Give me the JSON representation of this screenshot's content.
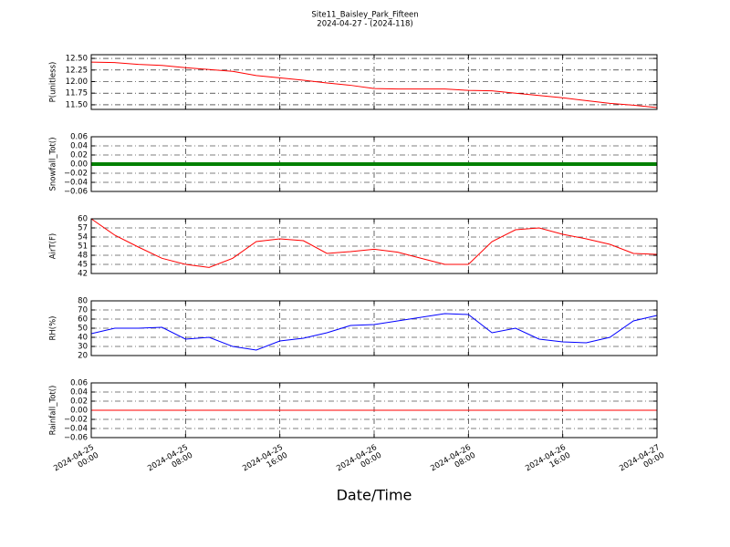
{
  "chart_data": [
    {
      "type": "line",
      "title": "Site11_Baisley_Park_Fifteen",
      "subtitle": "2024-04-27 - (2024-118)",
      "ylabel": "P(unitless)",
      "color": "#ff0000",
      "x": [
        "2024-04-25 00:00",
        "2024-04-25 02:00",
        "2024-04-25 04:00",
        "2024-04-25 06:00",
        "2024-04-25 08:00",
        "2024-04-25 10:00",
        "2024-04-25 12:00",
        "2024-04-25 14:00",
        "2024-04-25 16:00",
        "2024-04-25 18:00",
        "2024-04-25 20:00",
        "2024-04-25 22:00",
        "2024-04-26 00:00",
        "2024-04-26 02:00",
        "2024-04-26 04:00",
        "2024-04-26 06:00",
        "2024-04-26 08:00",
        "2024-04-26 10:00",
        "2024-04-26 12:00",
        "2024-04-26 14:00",
        "2024-04-26 16:00",
        "2024-04-26 18:00",
        "2024-04-26 20:00",
        "2024-04-26 22:00",
        "2024-04-27 00:00"
      ],
      "values": [
        12.42,
        12.41,
        12.37,
        12.35,
        12.3,
        12.26,
        12.22,
        12.13,
        12.08,
        12.03,
        11.97,
        11.92,
        11.85,
        11.84,
        11.84,
        11.84,
        11.81,
        11.8,
        11.75,
        11.7,
        11.65,
        11.59,
        11.53,
        11.49,
        11.44
      ],
      "xlim": [
        "2024-04-25 00:00",
        "2024-04-27 00:00"
      ],
      "xticks": [
        "2024-04-25 00:00",
        "2024-04-25 08:00",
        "2024-04-25 16:00",
        "2024-04-26 00:00",
        "2024-04-26 08:00",
        "2024-04-26 16:00",
        "2024-04-27 00:00"
      ],
      "ylim": [
        11.4,
        12.58
      ],
      "yticks": [
        {
          "value": 11.5,
          "label": "11.50"
        },
        {
          "value": 11.75,
          "label": "11.75"
        },
        {
          "value": 12.0,
          "label": "12.00"
        },
        {
          "value": 12.25,
          "label": "12.25"
        },
        {
          "value": 12.5,
          "label": "12.50"
        }
      ],
      "grid": true
    },
    {
      "type": "line",
      "ylabel": "Snowfall_Tot()",
      "color": "#008000",
      "x": [
        "2024-04-25 00:00",
        "2024-04-25 02:00",
        "2024-04-25 04:00",
        "2024-04-25 06:00",
        "2024-04-25 08:00",
        "2024-04-25 10:00",
        "2024-04-25 12:00",
        "2024-04-25 14:00",
        "2024-04-25 16:00",
        "2024-04-25 18:00",
        "2024-04-25 20:00",
        "2024-04-25 22:00",
        "2024-04-26 00:00",
        "2024-04-26 02:00",
        "2024-04-26 04:00",
        "2024-04-26 06:00",
        "2024-04-26 08:00",
        "2024-04-26 10:00",
        "2024-04-26 12:00",
        "2024-04-26 14:00",
        "2024-04-26 16:00",
        "2024-04-26 18:00",
        "2024-04-26 20:00",
        "2024-04-26 22:00",
        "2024-04-27 00:00"
      ],
      "values": [
        0,
        0,
        0,
        0,
        0,
        0,
        0,
        0,
        0,
        0,
        0,
        0,
        0,
        0,
        0,
        0,
        0,
        0,
        0,
        0,
        0,
        0,
        0,
        0,
        0
      ],
      "xlim": [
        "2024-04-25 00:00",
        "2024-04-27 00:00"
      ],
      "xticks": [
        "2024-04-25 00:00",
        "2024-04-25 08:00",
        "2024-04-25 16:00",
        "2024-04-26 00:00",
        "2024-04-26 08:00",
        "2024-04-26 16:00",
        "2024-04-27 00:00"
      ],
      "ylim": [
        -0.06,
        0.06
      ],
      "yticks": [
        {
          "value": -0.06,
          "label": "−0.06"
        },
        {
          "value": -0.04,
          "label": "−0.04"
        },
        {
          "value": -0.02,
          "label": "−0.02"
        },
        {
          "value": 0,
          "label": "0.00"
        },
        {
          "value": 0.02,
          "label": "0.02"
        },
        {
          "value": 0.04,
          "label": "0.04"
        },
        {
          "value": 0.06,
          "label": "0.06"
        }
      ],
      "grid": true
    },
    {
      "type": "line",
      "ylabel": "AirT(F)",
      "color": "#ff0000",
      "x": [
        "2024-04-25 00:00",
        "2024-04-25 02:00",
        "2024-04-25 04:00",
        "2024-04-25 06:00",
        "2024-04-25 08:00",
        "2024-04-25 10:00",
        "2024-04-25 12:00",
        "2024-04-25 14:00",
        "2024-04-25 16:00",
        "2024-04-25 18:00",
        "2024-04-25 20:00",
        "2024-04-25 22:00",
        "2024-04-26 00:00",
        "2024-04-26 02:00",
        "2024-04-26 04:00",
        "2024-04-26 06:00",
        "2024-04-26 08:00",
        "2024-04-26 10:00",
        "2024-04-26 12:00",
        "2024-04-26 14:00",
        "2024-04-26 16:00",
        "2024-04-26 18:00",
        "2024-04-26 20:00",
        "2024-04-26 22:00",
        "2024-04-27 00:00"
      ],
      "values": [
        60,
        54.6,
        50.7,
        47,
        45,
        44,
        47,
        52.5,
        53.4,
        52.8,
        48.6,
        49.2,
        50,
        49,
        47,
        45,
        45,
        52.5,
        56.4,
        57,
        54.9,
        53.4,
        51.6,
        48.6,
        48.3
      ],
      "xlim": [
        "2024-04-25 00:00",
        "2024-04-27 00:00"
      ],
      "xticks": [
        "2024-04-25 00:00",
        "2024-04-25 08:00",
        "2024-04-25 16:00",
        "2024-04-26 00:00",
        "2024-04-26 08:00",
        "2024-04-26 16:00",
        "2024-04-27 00:00"
      ],
      "ylim": [
        42,
        60
      ],
      "yticks": [
        42,
        45,
        48,
        51,
        54,
        57,
        60
      ],
      "grid": true
    },
    {
      "type": "line",
      "ylabel": "RH(%)",
      "color": "#0000ff",
      "x": [
        "2024-04-25 00:00",
        "2024-04-25 02:00",
        "2024-04-25 04:00",
        "2024-04-25 06:00",
        "2024-04-25 08:00",
        "2024-04-25 10:00",
        "2024-04-25 12:00",
        "2024-04-25 14:00",
        "2024-04-25 16:00",
        "2024-04-25 18:00",
        "2024-04-25 20:00",
        "2024-04-25 22:00",
        "2024-04-26 00:00",
        "2024-04-26 02:00",
        "2024-04-26 04:00",
        "2024-04-26 06:00",
        "2024-04-26 08:00",
        "2024-04-26 10:00",
        "2024-04-26 12:00",
        "2024-04-26 14:00",
        "2024-04-26 16:00",
        "2024-04-26 18:00",
        "2024-04-26 20:00",
        "2024-04-26 22:00",
        "2024-04-27 00:00"
      ],
      "values": [
        44,
        50,
        50,
        51,
        38,
        40,
        30,
        26,
        36,
        39,
        45,
        53,
        54,
        58,
        62,
        66,
        65,
        45,
        50,
        38,
        35,
        34,
        40,
        58,
        64
      ],
      "xlim": [
        "2024-04-25 00:00",
        "2024-04-27 00:00"
      ],
      "xticks": [
        "2024-04-25 00:00",
        "2024-04-25 08:00",
        "2024-04-25 16:00",
        "2024-04-26 00:00",
        "2024-04-26 08:00",
        "2024-04-26 16:00",
        "2024-04-27 00:00"
      ],
      "ylim": [
        20,
        80
      ],
      "yticks": [
        20,
        30,
        40,
        50,
        60,
        70,
        80
      ],
      "grid": true
    },
    {
      "type": "line",
      "ylabel": "Rainfall_Tot()",
      "xlabel": "Date/Time",
      "color": "#ff0000",
      "x": [
        "2024-04-25 00:00",
        "2024-04-25 02:00",
        "2024-04-25 04:00",
        "2024-04-25 06:00",
        "2024-04-25 08:00",
        "2024-04-25 10:00",
        "2024-04-25 12:00",
        "2024-04-25 14:00",
        "2024-04-25 16:00",
        "2024-04-25 18:00",
        "2024-04-25 20:00",
        "2024-04-25 22:00",
        "2024-04-26 00:00",
        "2024-04-26 02:00",
        "2024-04-26 04:00",
        "2024-04-26 06:00",
        "2024-04-26 08:00",
        "2024-04-26 10:00",
        "2024-04-26 12:00",
        "2024-04-26 14:00",
        "2024-04-26 16:00",
        "2024-04-26 18:00",
        "2024-04-26 20:00",
        "2024-04-26 22:00",
        "2024-04-27 00:00"
      ],
      "values": [
        0,
        0,
        0,
        0,
        0,
        0,
        0,
        0,
        0,
        0,
        0,
        0,
        0,
        0,
        0,
        0,
        0,
        0,
        0,
        0,
        0,
        0,
        0,
        0,
        0
      ],
      "xlim": [
        "2024-04-25 00:00",
        "2024-04-27 00:00"
      ],
      "xticks": [
        "2024-04-25 00:00",
        "2024-04-25 08:00",
        "2024-04-25 16:00",
        "2024-04-26 00:00",
        "2024-04-26 08:00",
        "2024-04-26 16:00",
        "2024-04-27 00:00"
      ],
      "ylim": [
        -0.06,
        0.06
      ],
      "yticks": [
        {
          "value": -0.06,
          "label": "−0.06"
        },
        {
          "value": -0.04,
          "label": "−0.04"
        },
        {
          "value": -0.02,
          "label": "−0.02"
        },
        {
          "value": 0,
          "label": "0.00"
        },
        {
          "value": 0.02,
          "label": "0.02"
        },
        {
          "value": 0.04,
          "label": "0.04"
        },
        {
          "value": 0.06,
          "label": "0.06"
        }
      ],
      "grid": true
    }
  ]
}
